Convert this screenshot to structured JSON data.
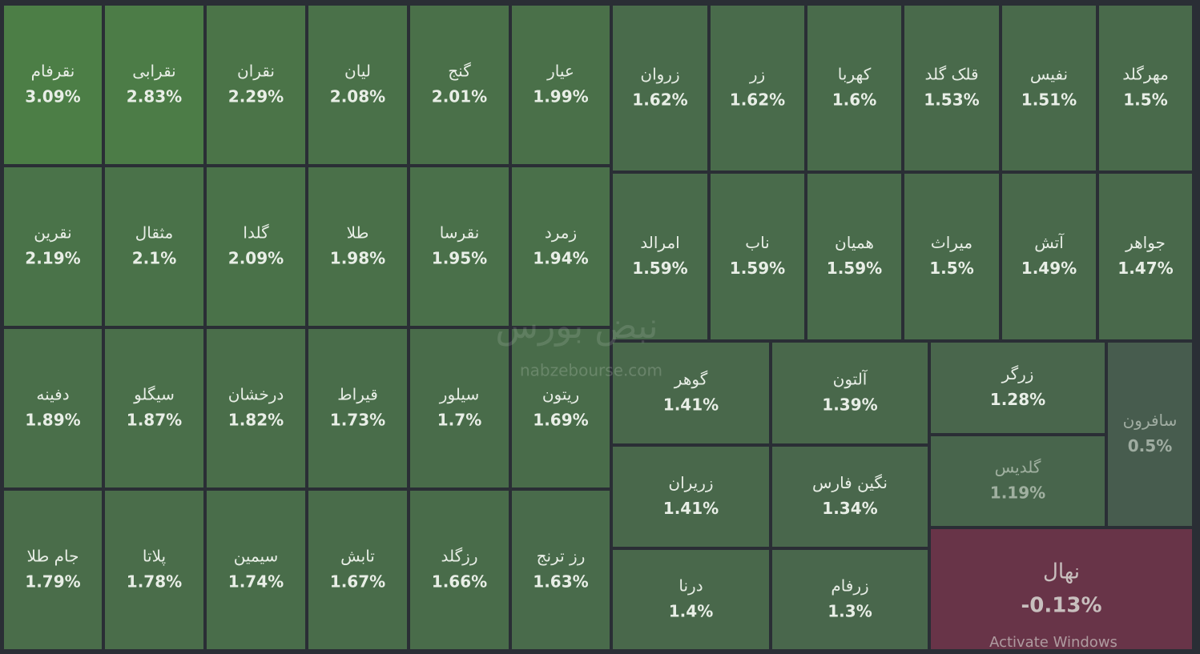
{
  "chart_data": {
    "type": "treemap",
    "categories": [
      "نقرفام",
      "نقرابی",
      "نقران",
      "لیان",
      "گنج",
      "عیار",
      "نقرین",
      "مثقال",
      "گلدا",
      "طلا",
      "نقرسا",
      "زمرد",
      "دفینه",
      "سیگلو",
      "درخشان",
      "قیراط",
      "سیلور",
      "ریتون",
      "جام طلا",
      "پلاتا",
      "سیمین",
      "تابش",
      "رزگلد",
      "رز ترنج",
      "زروان",
      "زر",
      "کهربا",
      "قلک گلد",
      "نفیس",
      "مهرگلد",
      "امرالد",
      "ناب",
      "همیان",
      "میراث",
      "آتش",
      "جواهر",
      "گوهر",
      "آلتون",
      "زریران",
      "نگین فارس",
      "درنا",
      "زرفام",
      "زرگر",
      "گلدیس",
      "سافرون",
      "نهال"
    ],
    "values": [
      3.09,
      2.83,
      2.29,
      2.08,
      2.01,
      1.99,
      2.19,
      2.1,
      2.09,
      1.98,
      1.95,
      1.94,
      1.89,
      1.87,
      1.82,
      1.73,
      1.7,
      1.69,
      1.79,
      1.78,
      1.74,
      1.67,
      1.66,
      1.63,
      1.62,
      1.62,
      1.6,
      1.53,
      1.51,
      1.5,
      1.59,
      1.59,
      1.59,
      1.5,
      1.49,
      1.47,
      1.41,
      1.39,
      1.41,
      1.34,
      1.4,
      1.3,
      1.28,
      1.19,
      0.5,
      -0.13
    ],
    "value_labels": [
      "3.09%",
      "2.83%",
      "2.29%",
      "2.08%",
      "2.01%",
      "1.99%",
      "2.19%",
      "2.1%",
      "2.09%",
      "1.98%",
      "1.95%",
      "1.94%",
      "1.89%",
      "1.87%",
      "1.82%",
      "1.73%",
      "1.7%",
      "1.69%",
      "1.79%",
      "1.78%",
      "1.74%",
      "1.67%",
      "1.66%",
      "1.63%",
      "1.62%",
      "1.62%",
      "1.6%",
      "1.53%",
      "1.51%",
      "1.5%",
      "1.59%",
      "1.59%",
      "1.59%",
      "1.5%",
      "1.49%",
      "1.47%",
      "1.41%",
      "1.39%",
      "1.41%",
      "1.34%",
      "1.4%",
      "1.3%",
      "1.28%",
      "1.19%",
      "0.5%",
      "-0.13%"
    ],
    "watermark_logo": "نبض بورس",
    "watermark": "nabzebourse.com"
  },
  "overlay": "Activate Windows"
}
